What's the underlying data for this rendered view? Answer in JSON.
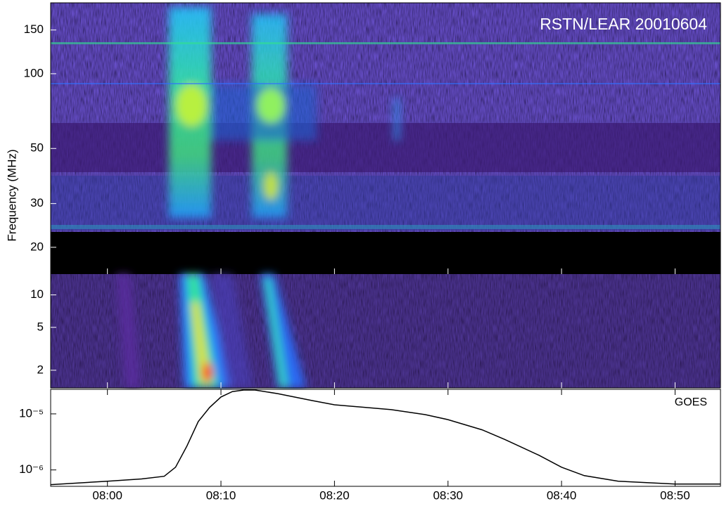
{
  "chart_data": [
    {
      "type": "spectrogram",
      "title": "RSTN/LEAR 20010604",
      "y_label": "Frequency (MHz)",
      "ylim": [
        15.6,
        193
      ],
      "yticks": [
        20,
        30,
        50,
        100,
        150
      ],
      "log_y": true
    },
    {
      "type": "spectrogram",
      "ylim": [
        1.37,
        15.6
      ],
      "yticks": [
        2,
        5,
        10
      ],
      "log_y": true
    },
    {
      "type": "line",
      "label": "GOES",
      "color": "#000000",
      "log_y": true,
      "x": [
        "07:55",
        "08:00",
        "08:03",
        "08:05",
        "08:06",
        "08:07",
        "08:08",
        "08:09",
        "08:10",
        "08:11",
        "08:12",
        "08:13",
        "08:15",
        "08:18",
        "08:20",
        "08:25",
        "08:28",
        "08:30",
        "08:33",
        "08:35",
        "08:38",
        "08:40",
        "08:42",
        "08:45",
        "08:50",
        "08:54"
      ],
      "values": [
        5.46e-07,
        6.3e-07,
        6.9e-07,
        7.7e-07,
        1.12e-06,
        2.66e-06,
        7.3e-06,
        1.3e-05,
        2e-05,
        2.5e-05,
        2.66e-05,
        2.66e-05,
        2.3e-05,
        1.73e-05,
        1.45e-05,
        1.19e-05,
        9.7e-06,
        7.9e-06,
        5.2e-06,
        3.5e-06,
        1.83e-06,
        1.12e-06,
        7.9e-07,
        6.3e-07,
        5.6e-07,
        5.6e-07
      ],
      "xlim": [
        "07:55",
        "08:54"
      ],
      "xticks": [
        "08:00",
        "08:10",
        "08:20",
        "08:30",
        "08:40",
        "08:50"
      ],
      "ylim": [
        5.1e-07,
        2.74e-05
      ],
      "yticks": [
        {
          "value": 1e-06,
          "label": "10⁻⁶"
        },
        {
          "value": 1e-05,
          "label": "10⁻⁵"
        }
      ]
    }
  ]
}
